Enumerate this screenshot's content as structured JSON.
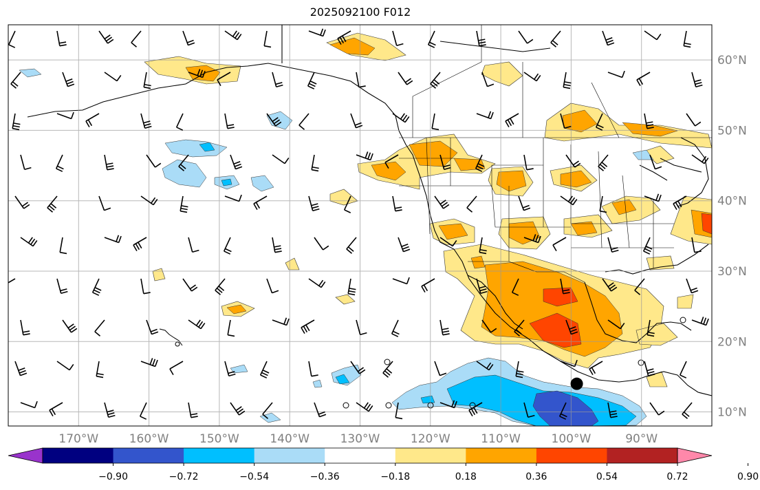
{
  "title": "2025092100 F012",
  "map": {
    "lon_range": [
      -180,
      -80
    ],
    "lat_range": [
      8,
      65
    ],
    "lon_labels": [
      {
        "lon": -170,
        "text": "170°W"
      },
      {
        "lon": -160,
        "text": "160°W"
      },
      {
        "lon": -150,
        "text": "150°W"
      },
      {
        "lon": -140,
        "text": "140°W"
      },
      {
        "lon": -130,
        "text": "130°W"
      },
      {
        "lon": -120,
        "text": "120°W"
      },
      {
        "lon": -110,
        "text": "110°W"
      },
      {
        "lon": -100,
        "text": "100°W"
      },
      {
        "lon": -90,
        "text": "90°W"
      }
    ],
    "lat_labels": [
      {
        "lat": 60,
        "text": "60°N"
      },
      {
        "lat": 50,
        "text": "50°N"
      },
      {
        "lat": 40,
        "text": "40°N"
      },
      {
        "lat": 30,
        "text": "30°N"
      },
      {
        "lat": 20,
        "text": "20°N"
      },
      {
        "lat": 10,
        "text": "10°N"
      }
    ],
    "marker": {
      "lon": -99.2,
      "lat": 14.0
    }
  },
  "colorbar": {
    "colors": [
      "#9933cc",
      "#000080",
      "#3355cc",
      "#00bfff",
      "#aadcf7",
      "#ffffff",
      "#ffe88a",
      "#ffa500",
      "#ff4500",
      "#b22222",
      "#ff88aa"
    ],
    "ticks": [
      "−0.90",
      "−0.72",
      "−0.54",
      "−0.36",
      "−0.18",
      "0.18",
      "0.36",
      "0.54",
      "0.72",
      "0.90"
    ]
  }
}
